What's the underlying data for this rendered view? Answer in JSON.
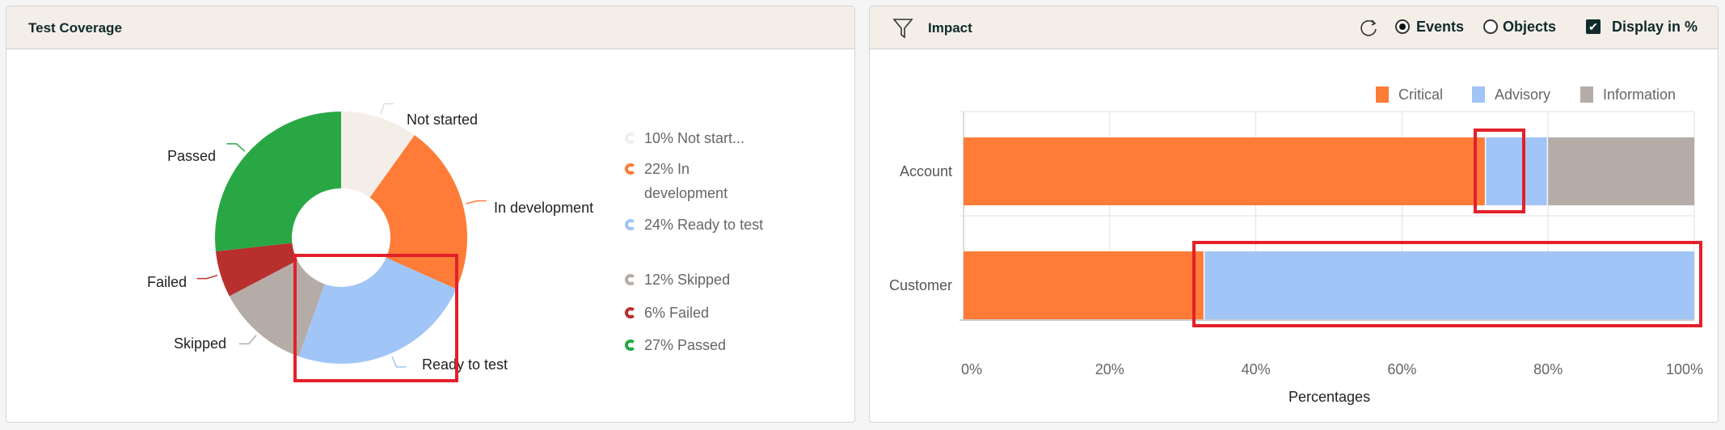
{
  "left_panel": {
    "title": "Test Coverage"
  },
  "right_panel": {
    "title": "Impact",
    "filter_icon": "filter-icon",
    "refresh_icon": "refresh-icon",
    "radio_events": "Events",
    "radio_objects": "Objects",
    "selected": "Events",
    "checkbox_label": "Display in %",
    "checkbox_checked": true
  },
  "chart_data": [
    {
      "type": "pie",
      "donut": true,
      "slices": [
        {
          "label": "Not started",
          "value": 10,
          "color": "#f4eee9",
          "legend": "10% Not start..."
        },
        {
          "label": "In development",
          "value": 22,
          "color": "#fe7c37",
          "legend": "22% In development"
        },
        {
          "label": "Ready to test",
          "value": 24,
          "color": "#a1c5f6",
          "legend": "24% Ready to test"
        },
        {
          "label": "Skipped",
          "value": 12,
          "color": "#b5aca7",
          "legend": "12% Skipped"
        },
        {
          "label": "Failed",
          "value": 6,
          "color": "#b8302e",
          "legend": "6% Failed"
        },
        {
          "label": "Passed",
          "value": 27,
          "color": "#29a745",
          "legend": "27% Passed"
        }
      ],
      "legend_position": "right"
    },
    {
      "type": "bar",
      "orientation": "horizontal",
      "stacked": true,
      "categories": [
        "Account",
        "Customer"
      ],
      "series": [
        {
          "name": "Critical",
          "color": "#fe7c37",
          "values": [
            71.5,
            33
          ]
        },
        {
          "name": "Advisory",
          "color": "#a1c5f6",
          "values": [
            8.5,
            67
          ]
        },
        {
          "name": "Information",
          "color": "#b5aca7",
          "values": [
            20,
            0
          ]
        }
      ],
      "xlabel": "Percentages",
      "xlim": [
        0,
        100
      ],
      "xticks": [
        "0%",
        "20%",
        "40%",
        "60%",
        "80%",
        "100%"
      ],
      "grid": true,
      "legend_position": "top-right"
    }
  ]
}
